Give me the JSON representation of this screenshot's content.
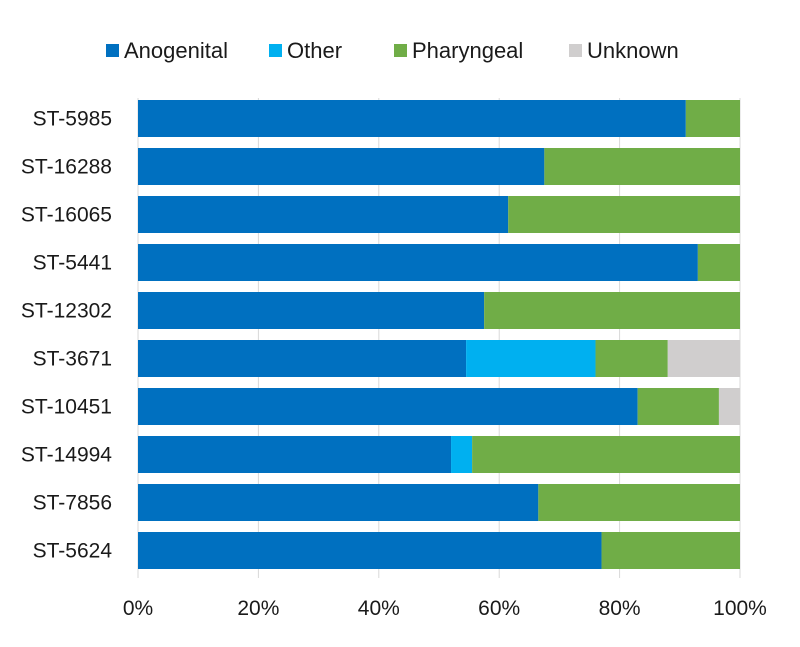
{
  "chart_data": {
    "type": "bar",
    "orientation": "horizontal",
    "stacked": "percent",
    "title": "",
    "xlabel": "",
    "ylabel": "",
    "xlim": [
      0,
      100
    ],
    "grid": "vertical gridlines",
    "legend_position": "top",
    "categories": [
      "ST-5985",
      "ST-16288",
      "ST-16065",
      "ST-5441",
      "ST-12302",
      "ST-3671",
      "ST-10451",
      "ST-14994",
      "ST-7856",
      "ST-5624"
    ],
    "x_ticks": [
      "0%",
      "20%",
      "40%",
      "60%",
      "80%",
      "100%"
    ],
    "series": [
      {
        "name": "Anogenital",
        "color": "#0070c0",
        "values": [
          91,
          67.5,
          61.5,
          93,
          57.5,
          54.5,
          83,
          52,
          66.5,
          77
        ]
      },
      {
        "name": "Other",
        "color": "#00b0f0",
        "values": [
          0,
          0,
          0,
          0,
          0,
          21.5,
          0,
          3.5,
          0,
          0
        ]
      },
      {
        "name": "Pharyngeal",
        "color": "#70ad47",
        "values": [
          9,
          32.5,
          38.5,
          7,
          42.5,
          12,
          13.5,
          44.5,
          33.5,
          23
        ]
      },
      {
        "name": "Unknown",
        "color": "#d0cece",
        "values": [
          0,
          0,
          0,
          0,
          0,
          12,
          3.5,
          0,
          0,
          0
        ]
      }
    ]
  }
}
